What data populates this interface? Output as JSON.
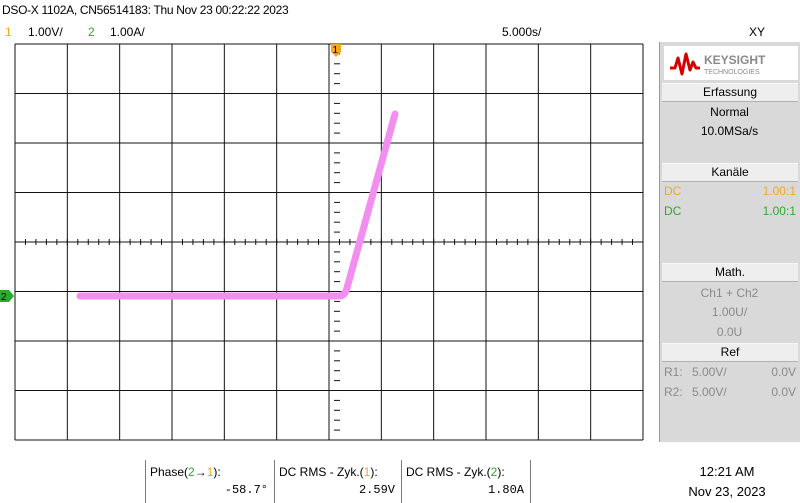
{
  "header": {
    "title": "DSO-X 1102A, CN56514183: Thu Nov 23 00:22:22 2023",
    "ch1_number": "1",
    "ch1_scale": "1.00V/",
    "ch2_number": "2",
    "ch2_scale": "1.00A/",
    "timebase": "5.000s/",
    "mode": "XY"
  },
  "screen": {
    "trace_color": "#f28ef0",
    "ch1_marker": "1",
    "ch2_marker": "2"
  },
  "sidebar": {
    "brand_name": "KEYSIGHT",
    "brand_sub": "TECHNOLOGIES",
    "acquisition": {
      "title": "Erfassung",
      "mode": "Normal",
      "rate": "10.0MSa/s"
    },
    "channels": {
      "title": "Kanäle",
      "rows": [
        {
          "coupling": "DC",
          "probe": "1.00:1",
          "color": "#f5a623"
        },
        {
          "coupling": "DC",
          "probe": "1.00:1",
          "color": "#2ea82e"
        }
      ]
    },
    "math": {
      "title": "Math.",
      "func": "Ch1 + Ch2",
      "scale": "1.00U/",
      "offset": "0.0U"
    },
    "ref": {
      "title": "Ref",
      "rows": [
        {
          "name": "R1:",
          "scale": "5.00V/",
          "offset": "0.0V"
        },
        {
          "name": "R2:",
          "scale": "5.00V/",
          "offset": "0.0V"
        }
      ]
    }
  },
  "measurements": [
    {
      "label_pre": "Phase(",
      "label_a": "2",
      "label_arrow": "→",
      "label_b": "1",
      "label_post": "):",
      "value": "-58.7°"
    },
    {
      "label_pre": "DC RMS - Zyk.(",
      "label_a": "1",
      "label_post": "):",
      "value": "2.59V"
    },
    {
      "label_pre": "DC RMS - Zyk.(",
      "label_a": "2",
      "label_post": "):",
      "value": "1.80A"
    }
  ],
  "clock": {
    "time": "12:21 AM",
    "date": "Nov 23, 2023"
  }
}
